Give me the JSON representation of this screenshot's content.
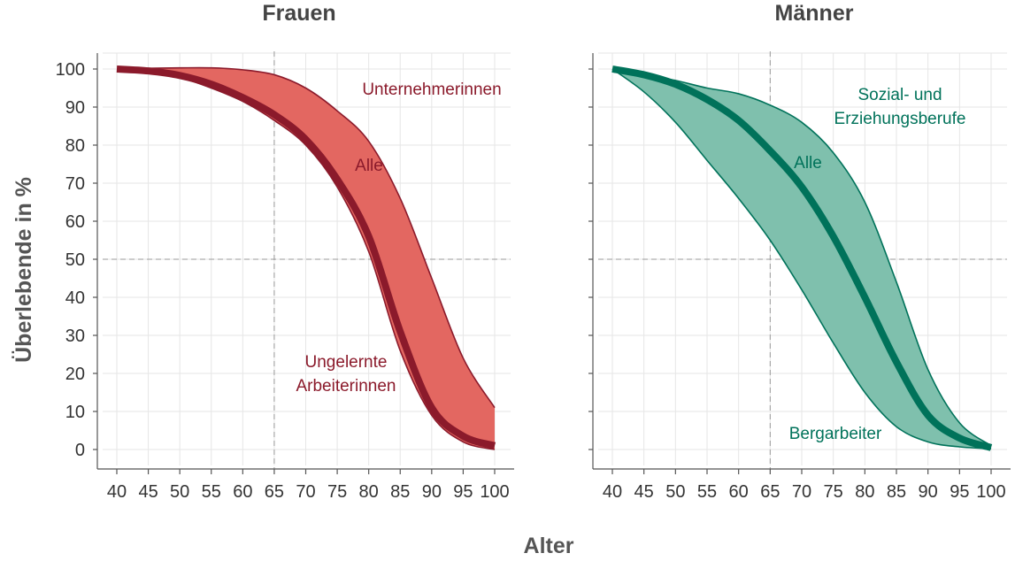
{
  "figure": {
    "xlabel": "Alter",
    "ylabel": "Überlebende in %"
  },
  "chart_data": [
    {
      "type": "area",
      "title": "Frauen",
      "x": [
        40,
        45,
        50,
        55,
        60,
        65,
        70,
        75,
        80,
        85,
        90,
        95,
        100
      ],
      "xticks": [
        "40",
        "45",
        "50",
        "55",
        "60",
        "65",
        "70",
        "75",
        "80",
        "85",
        "90",
        "95",
        "100"
      ],
      "yticks": [
        "0",
        "10",
        "20",
        "30",
        "40",
        "50",
        "60",
        "70",
        "80",
        "90",
        "100"
      ],
      "xlim": [
        40,
        100
      ],
      "ylim": [
        0,
        100
      ],
      "grid": true,
      "reference_lines": {
        "x": 65,
        "y": 50
      },
      "color": "#e36761",
      "line_color": "#8b1a2b",
      "series": [
        {
          "name": "Unternehmerinnen",
          "values": [
            100,
            100.2,
            100.3,
            100.3,
            99.8,
            98.5,
            95,
            89,
            81,
            66,
            45,
            24,
            11
          ]
        },
        {
          "name": "Alle",
          "values": [
            100,
            99.5,
            98.3,
            96,
            92.5,
            88,
            81.5,
            71,
            56,
            31,
            11,
            3.5,
            1
          ]
        },
        {
          "name": "Ungelernte Arbeiterinnen",
          "values": [
            100,
            99.3,
            97.8,
            95,
            91.5,
            86.5,
            80,
            69,
            52,
            26,
            9,
            2,
            0
          ]
        }
      ],
      "annotations": [
        {
          "text": "Unternehmerinnen",
          "series": "Unternehmerinnen"
        },
        {
          "text": "Alle",
          "series": "Alle"
        },
        {
          "lines": [
            "Ungelernte",
            "Arbeiterinnen"
          ],
          "series": "Ungelernte Arbeiterinnen"
        }
      ]
    },
    {
      "type": "area",
      "title": "Männer",
      "x": [
        40,
        45,
        50,
        55,
        60,
        65,
        70,
        75,
        80,
        85,
        90,
        95,
        100
      ],
      "xticks": [
        "40",
        "45",
        "50",
        "55",
        "60",
        "65",
        "70",
        "75",
        "80",
        "85",
        "90",
        "95",
        "100"
      ],
      "yticks": [
        "0",
        "10",
        "20",
        "30",
        "40",
        "50",
        "60",
        "70",
        "80",
        "90",
        "100"
      ],
      "xlim": [
        40,
        100
      ],
      "ylim": [
        0,
        100
      ],
      "grid": true,
      "reference_lines": {
        "x": 65,
        "y": 50
      },
      "color": "#7fc0ad",
      "line_color": "#00725a",
      "series": [
        {
          "name": "Sozial- und Erziehungsberufe",
          "values": [
            100,
            98.5,
            97,
            95,
            93.5,
            90.5,
            86,
            78,
            65,
            44,
            21,
            7,
            1
          ]
        },
        {
          "name": "Alle",
          "values": [
            100,
            98.5,
            96,
            92,
            86.5,
            78.5,
            69,
            56,
            40,
            23,
            9,
            3,
            0.5
          ]
        },
        {
          "name": "Bergarbeiter",
          "values": [
            100,
            94,
            86,
            76,
            66,
            55,
            42,
            28,
            15,
            6,
            2,
            0.7,
            0.2
          ]
        }
      ],
      "annotations": [
        {
          "lines": [
            "Sozial- und",
            "Erziehungsberufe"
          ],
          "series": "Sozial- und Erziehungsberufe"
        },
        {
          "text": "Alle",
          "series": "Alle"
        },
        {
          "text": "Bergarbeiter",
          "series": "Bergarbeiter"
        }
      ]
    }
  ]
}
